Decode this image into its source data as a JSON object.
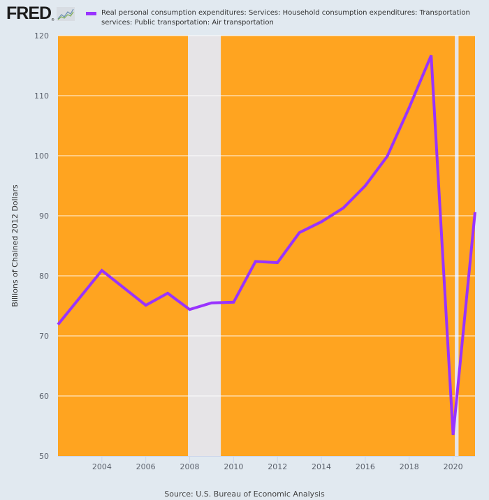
{
  "header": {
    "logo_text": "FRED",
    "logo_reg": "®",
    "logo_icon": "line-graph-icon"
  },
  "legend": {
    "series_label": "Real personal consumption expenditures: Services: Household consumption expenditures: Transportation services: Public transportation: Air transportation",
    "swatch_color": "#9933ff"
  },
  "source": "Source: U.S. Bureau of Economic Analysis",
  "colors": {
    "background": "#e1e9f0",
    "plot_background": "#ffa420",
    "recession": "#e6e4e7",
    "gridline": "#ffffff",
    "line": "#9933ff"
  },
  "chart_data": {
    "type": "line",
    "title": "",
    "xlabel": "",
    "ylabel": "Billions of Chained 2012 Dollars",
    "xlim": [
      2002,
      2021
    ],
    "ylim": [
      50,
      120
    ],
    "grid": true,
    "legend_position": "top",
    "x_ticks": [
      2004,
      2006,
      2008,
      2010,
      2012,
      2014,
      2016,
      2018,
      2020
    ],
    "y_ticks": [
      50,
      60,
      70,
      80,
      90,
      100,
      110,
      120
    ],
    "recessions": [
      {
        "start": 2007.92,
        "end": 2009.42
      },
      {
        "start": 2020.08,
        "end": 2020.25
      }
    ],
    "series": [
      {
        "name": "Real personal consumption expenditures: Services: Household consumption expenditures: Transportation services: Public transportation: Air transportation",
        "x": [
          2002,
          2003,
          2004,
          2005,
          2006,
          2007,
          2008,
          2009,
          2010,
          2011,
          2012,
          2013,
          2014,
          2015,
          2016,
          2017,
          2018,
          2019,
          2020,
          2021
        ],
        "values": [
          71.9,
          76.4,
          80.9,
          78.0,
          75.1,
          77.1,
          74.4,
          75.5,
          75.6,
          82.4,
          82.2,
          87.2,
          89.0,
          91.3,
          95.0,
          99.9,
          108.0,
          116.7,
          53.5,
          90.6
        ]
      }
    ]
  }
}
